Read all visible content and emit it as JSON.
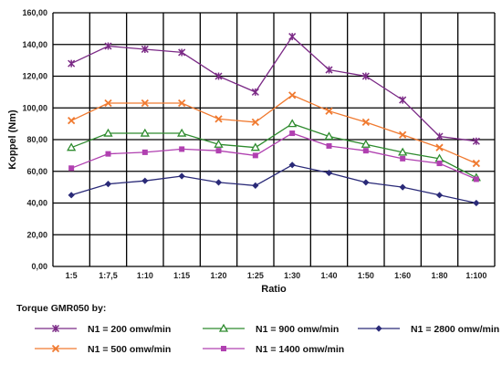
{
  "chart_data": {
    "type": "line",
    "title": "",
    "xlabel": "Ratio",
    "ylabel": "Koppel (Nm)",
    "categories": [
      "1:5",
      "1:7,5",
      "1:10",
      "1:15",
      "1:20",
      "1:25",
      "1:30",
      "1:40",
      "1:50",
      "1:60",
      "1:80",
      "1:100"
    ],
    "ylim": [
      0,
      160
    ],
    "yticks": [
      "0,00",
      "20,00",
      "40,00",
      "60,00",
      "80,00",
      "100,00",
      "120,00",
      "140,00",
      "160,00"
    ],
    "grid": true,
    "legend_title": "Torque GMR050 by:",
    "legend_position": "bottom",
    "series": [
      {
        "name": "N1 = 200 omw/min",
        "color": "#7b2a86",
        "marker": "asterisk",
        "values": [
          128,
          139,
          137,
          135,
          120,
          110,
          145,
          124,
          120,
          105,
          82,
          79
        ]
      },
      {
        "name": "N1 = 500 omw/min",
        "color": "#f07a30",
        "marker": "x",
        "values": [
          92,
          103,
          103,
          103,
          93,
          91,
          108,
          98,
          91,
          83,
          75,
          65
        ]
      },
      {
        "name": "N1 = 900 omw/min",
        "color": "#2e8b2e",
        "marker": "triangle",
        "values": [
          75,
          84,
          84,
          84,
          77,
          75,
          90,
          82,
          77,
          72,
          68,
          56
        ]
      },
      {
        "name": "N1 = 1400 omw/min",
        "color": "#b040b0",
        "marker": "square",
        "values": [
          62,
          71,
          72,
          74,
          73,
          70,
          84,
          76,
          73,
          68,
          65,
          55
        ]
      },
      {
        "name": "N1 = 2800 omw/min",
        "color": "#2a2a78",
        "marker": "diamond",
        "values": [
          45,
          52,
          54,
          57,
          53,
          51,
          64,
          59,
          53,
          50,
          45,
          40
        ]
      }
    ]
  }
}
